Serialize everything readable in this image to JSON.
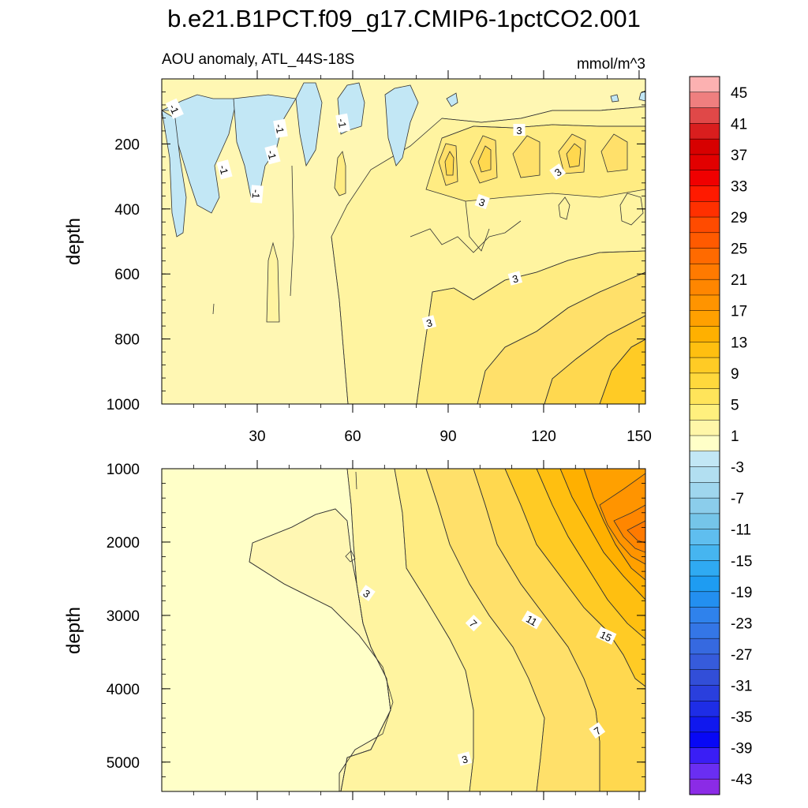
{
  "title": "b.e21.B1PCT.f09_g17.CMIP6-1pctCO2.001",
  "chart_data": {
    "type": "heatmap",
    "subtitle_left": "AOU anomaly, ATL_44S-18S",
    "subtitle_right": "mmol/m^3",
    "x_ticks": [
      "30",
      "60",
      "90",
      "120",
      "150"
    ],
    "xlim": [
      0,
      152
    ],
    "panels": [
      {
        "name": "upper",
        "ylabel": "depth",
        "ylim": [
          0,
          1000
        ],
        "y_ticks": [
          "200",
          "400",
          "600",
          "800",
          "1000"
        ],
        "contour_labels": [
          "-1",
          "-1",
          "-1",
          "-1",
          "-1",
          "-1",
          "3",
          "3",
          "3",
          "3",
          "3"
        ]
      },
      {
        "name": "lower",
        "ylabel": "depth",
        "ylim": [
          1000,
          5400
        ],
        "y_ticks": [
          "1000",
          "2000",
          "3000",
          "4000",
          "5000"
        ],
        "contour_labels": [
          "3",
          "7",
          "11",
          "15",
          "7",
          "3"
        ]
      }
    ],
    "colorbar": {
      "labels": [
        "45",
        "41",
        "37",
        "33",
        "29",
        "25",
        "21",
        "17",
        "13",
        "9",
        "5",
        "1",
        "-3",
        "-7",
        "-11",
        "-15",
        "-19",
        "-23",
        "-27",
        "-31",
        "-35",
        "-39",
        "-43"
      ],
      "colors": [
        "#fcb1b1",
        "#ef7f7f",
        "#e04848",
        "#d91e1e",
        "#d70000",
        "#e20000",
        "#f00000",
        "#ff1a00",
        "#ff3000",
        "#ff4b00",
        "#ff5a00",
        "#ff6a00",
        "#ff7a00",
        "#ff8600",
        "#ff9400",
        "#ffa000",
        "#ffb000",
        "#ffbf10",
        "#ffcb25",
        "#ffd83c",
        "#ffe45a",
        "#fff07e",
        "#fff6a8",
        "#ffffc8",
        "#c2e7f5",
        "#b2dff1",
        "#9fd6ee",
        "#8bcdeb",
        "#75c5e9",
        "#5fbeef",
        "#46b5f0",
        "#2faaf2",
        "#1e9cf2",
        "#238ff0",
        "#2f82ec",
        "#3476e6",
        "#3669e0",
        "#365bdb",
        "#324ed8",
        "#2a3fdd",
        "#1e2de6",
        "#1018ee",
        "#0808f5",
        "#3a1ef5",
        "#6a2ef2",
        "#8b2be6"
      ]
    }
  }
}
